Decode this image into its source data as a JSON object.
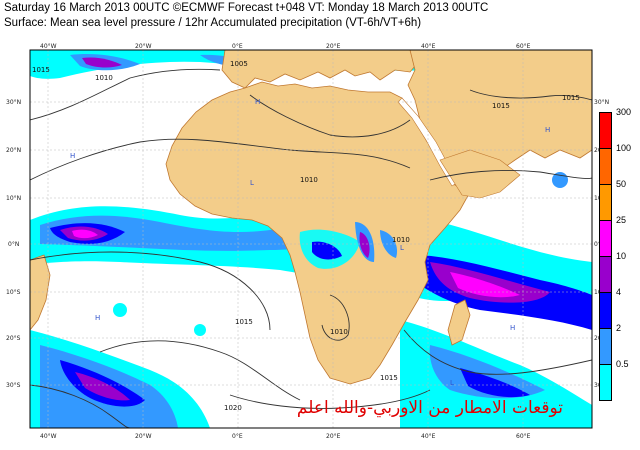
{
  "header": {
    "line1": "Saturday 16 March 2013 00UTC ©ECMWF Forecast t+048 VT: Monday 18 March 2013 00UTC",
    "line2": "Surface: Mean sea level pressure / 12hr Accumulated precipitation (VT-6h/VT+6h)"
  },
  "map": {
    "lon_labels_top": [
      "40°W",
      "20°W",
      "0°E",
      "20°E",
      "40°E",
      "60°E"
    ],
    "lon_labels_bottom": [
      "40°W",
      "20°W",
      "0°E",
      "20°E",
      "40°E",
      "60°E"
    ],
    "lat_labels_left": [
      "30°N",
      "20°N",
      "10°N",
      "0°N",
      "10°S",
      "20°S",
      "30°S"
    ],
    "lat_labels_right": [
      "30°N",
      "20°N",
      "10°N",
      "0°N",
      "10°S",
      "20°S",
      "30°S"
    ],
    "isobar_labels": [
      "1015",
      "1010",
      "1005",
      "1010",
      "1015",
      "1015",
      "1010",
      "1015",
      "1010",
      "1015",
      "1020"
    ],
    "pressure_centres": [
      "H",
      "H",
      "L",
      "H",
      "L",
      "H",
      "L",
      "H"
    ]
  },
  "legend": {
    "labels": [
      "300",
      "100",
      "50",
      "25",
      "10",
      "4",
      "2",
      "0.5"
    ],
    "colors": [
      "#ff0000",
      "#ff6600",
      "#ff9900",
      "#ff00ff",
      "#9900cc",
      "#0000ff",
      "#3399ff",
      "#00ffff"
    ]
  },
  "colors": {
    "land": "#f3cd8a",
    "ocean": "#ffffff",
    "coastline": "#c07830"
  },
  "overlay_text": "توقعات الامطار من الاوربي-والله اعلم"
}
